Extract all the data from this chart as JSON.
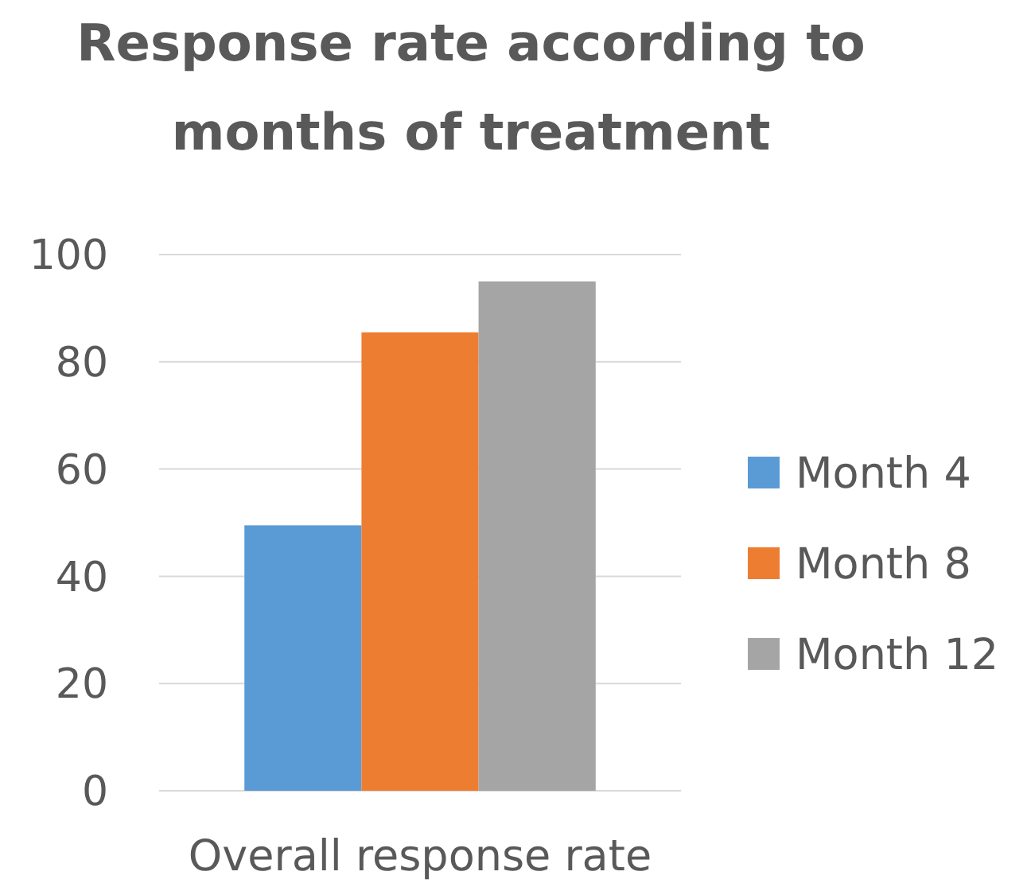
{
  "chart_data": {
    "type": "bar",
    "title": "Response rate according to months of treatment",
    "categories": [
      "Overall response rate"
    ],
    "series": [
      {
        "name": "Month 4",
        "color": "#5b9bd5",
        "values": [
          49.5
        ]
      },
      {
        "name": "Month 8",
        "color": "#ed7d31",
        "values": [
          85.5
        ]
      },
      {
        "name": "Month 12",
        "color": "#a5a5a5",
        "values": [
          95
        ]
      }
    ],
    "ylim": [
      0,
      100
    ],
    "yticks": [
      0,
      20,
      40,
      60,
      80,
      100
    ],
    "grid": "y",
    "legend": "right"
  }
}
